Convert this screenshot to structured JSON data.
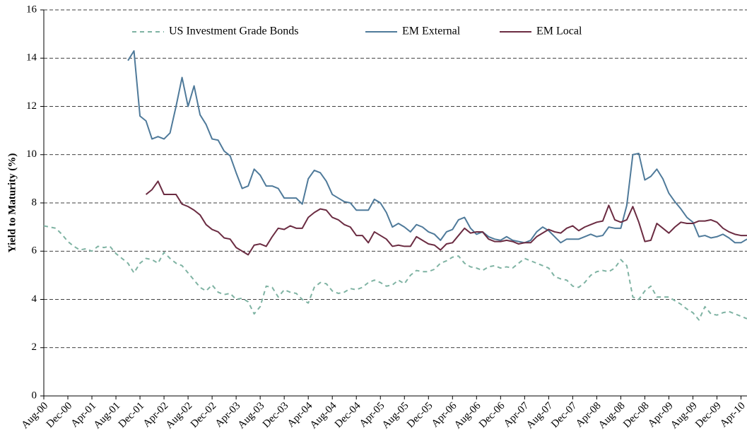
{
  "chart_data": {
    "type": "line",
    "y_label": "Yield to Maturity (%)",
    "ylim": [
      0,
      16
    ],
    "yticks": [
      0,
      2,
      4,
      6,
      8,
      10,
      12,
      14,
      16
    ],
    "grid": true,
    "legend": "top",
    "categories": [
      "Aug-00",
      null,
      null,
      null,
      "Dec-00",
      null,
      null,
      null,
      "Apr-01",
      null,
      null,
      null,
      "Aug-01",
      null,
      null,
      null,
      "Dec-01",
      null,
      null,
      null,
      "Apr-02",
      null,
      null,
      null,
      "Aug-02",
      null,
      null,
      null,
      "Dec-02",
      null,
      null,
      null,
      "Apr-03",
      null,
      null,
      null,
      "Aug-03",
      null,
      null,
      null,
      "Dec-03",
      null,
      null,
      null,
      "Apr-04",
      null,
      null,
      null,
      "Aug-04",
      null,
      null,
      null,
      "Dec-04",
      null,
      null,
      null,
      "Apr-05",
      null,
      null,
      null,
      "Aug-05",
      null,
      null,
      null,
      "Dec-05",
      null,
      null,
      null,
      "Apr-06",
      null,
      null,
      null,
      "Aug-06",
      null,
      null,
      null,
      "Dec-06",
      null,
      null,
      null,
      "Apr-07",
      null,
      null,
      null,
      "Aug-07",
      null,
      null,
      null,
      "Dec-07",
      null,
      null,
      null,
      "Apr-08",
      null,
      null,
      null,
      "Aug-08",
      null,
      null,
      null,
      "Dec-08",
      null,
      null,
      null,
      "Apr-09",
      null,
      null,
      null,
      "Aug-09",
      null,
      null,
      null,
      "Dec-09",
      null,
      null,
      null,
      "Apr-10",
      null
    ],
    "series": [
      {
        "name": "US Investment Grade Bonds",
        "color": "#7fb3a3",
        "dashed": true,
        "values": [
          7.05,
          7.0,
          6.95,
          6.7,
          6.4,
          6.2,
          6.05,
          6.1,
          6.0,
          6.2,
          6.15,
          6.2,
          5.9,
          5.7,
          5.5,
          5.1,
          5.5,
          5.7,
          5.65,
          5.5,
          5.95,
          5.7,
          5.5,
          5.4,
          5.1,
          4.8,
          4.5,
          4.35,
          4.6,
          4.3,
          4.2,
          4.25,
          4.0,
          4.05,
          3.9,
          3.4,
          3.7,
          4.55,
          4.5,
          4.1,
          4.4,
          4.3,
          4.25,
          4.0,
          3.85,
          4.5,
          4.7,
          4.65,
          4.35,
          4.25,
          4.3,
          4.45,
          4.4,
          4.5,
          4.7,
          4.8,
          4.7,
          4.55,
          4.6,
          4.8,
          4.65,
          5.0,
          5.2,
          5.15,
          5.15,
          5.25,
          5.5,
          5.6,
          5.75,
          5.8,
          5.5,
          5.35,
          5.3,
          5.2,
          5.35,
          5.4,
          5.3,
          5.35,
          5.3,
          5.5,
          5.7,
          5.6,
          5.5,
          5.4,
          5.3,
          4.95,
          4.85,
          4.8,
          4.55,
          4.5,
          4.7,
          5.0,
          5.15,
          5.2,
          5.15,
          5.3,
          5.65,
          5.4,
          4.1,
          4.0,
          4.35,
          4.55,
          4.1,
          4.1,
          4.1,
          3.95,
          3.8,
          3.6,
          3.45,
          3.15,
          3.7,
          3.4,
          3.35,
          3.45,
          3.5,
          3.4,
          3.3,
          3.2
        ]
      },
      {
        "name": "EM External",
        "color": "#4f7a9a",
        "dashed": false,
        "values": [
          null,
          null,
          null,
          null,
          null,
          null,
          null,
          null,
          null,
          null,
          null,
          null,
          null,
          null,
          13.9,
          14.3,
          11.6,
          11.4,
          10.65,
          10.75,
          10.65,
          10.9,
          12.0,
          13.2,
          12.0,
          12.85,
          11.65,
          11.25,
          10.65,
          10.6,
          10.15,
          9.95,
          9.25,
          8.6,
          8.7,
          9.4,
          9.15,
          8.7,
          8.7,
          8.6,
          8.2,
          8.2,
          8.2,
          7.95,
          9.0,
          9.35,
          9.25,
          8.9,
          8.35,
          8.2,
          8.05,
          8.0,
          7.7,
          7.7,
          7.7,
          8.15,
          8.0,
          7.6,
          7.0,
          7.15,
          7.0,
          6.8,
          7.1,
          7.0,
          6.8,
          6.7,
          6.45,
          6.8,
          6.9,
          7.3,
          7.4,
          6.95,
          6.7,
          6.8,
          6.6,
          6.5,
          6.45,
          6.6,
          6.45,
          6.4,
          6.35,
          6.45,
          6.8,
          7.0,
          6.85,
          6.6,
          6.35,
          6.5,
          6.5,
          6.5,
          6.6,
          6.7,
          6.6,
          6.65,
          7.0,
          6.95,
          6.95,
          7.9,
          10.0,
          10.05,
          8.95,
          9.1,
          9.4,
          9.0,
          8.4,
          8.05,
          7.75,
          7.4,
          7.2,
          6.6,
          6.65,
          6.55,
          6.6,
          6.7,
          6.55,
          6.35,
          6.35,
          6.5
        ]
      },
      {
        "name": "EM Local",
        "color": "#6b2c42",
        "dashed": false,
        "values": [
          null,
          null,
          null,
          null,
          null,
          null,
          null,
          null,
          null,
          null,
          null,
          null,
          null,
          null,
          null,
          null,
          null,
          8.35,
          8.55,
          8.9,
          8.35,
          8.35,
          8.35,
          7.95,
          7.85,
          7.7,
          7.5,
          7.1,
          6.9,
          6.8,
          6.55,
          6.5,
          6.15,
          6.0,
          5.85,
          6.25,
          6.3,
          6.2,
          6.6,
          6.95,
          6.9,
          7.05,
          6.95,
          6.95,
          7.4,
          7.6,
          7.75,
          7.7,
          7.4,
          7.3,
          7.1,
          7.0,
          6.65,
          6.65,
          6.35,
          6.8,
          6.65,
          6.5,
          6.2,
          6.25,
          6.2,
          6.2,
          6.6,
          6.45,
          6.3,
          6.25,
          6.05,
          6.3,
          6.35,
          6.65,
          6.95,
          6.75,
          6.8,
          6.8,
          6.5,
          6.4,
          6.4,
          6.45,
          6.4,
          6.3,
          6.35,
          6.35,
          6.6,
          6.75,
          6.9,
          6.8,
          6.75,
          6.95,
          7.05,
          6.85,
          7.0,
          7.1,
          7.2,
          7.25,
          7.9,
          7.3,
          7.2,
          7.3,
          7.85,
          7.2,
          6.4,
          6.45,
          7.15,
          6.95,
          6.75,
          7.0,
          7.2,
          7.15,
          7.15,
          7.25,
          7.25,
          7.3,
          7.2,
          6.95,
          6.8,
          6.7,
          6.65,
          6.65
        ]
      }
    ]
  }
}
